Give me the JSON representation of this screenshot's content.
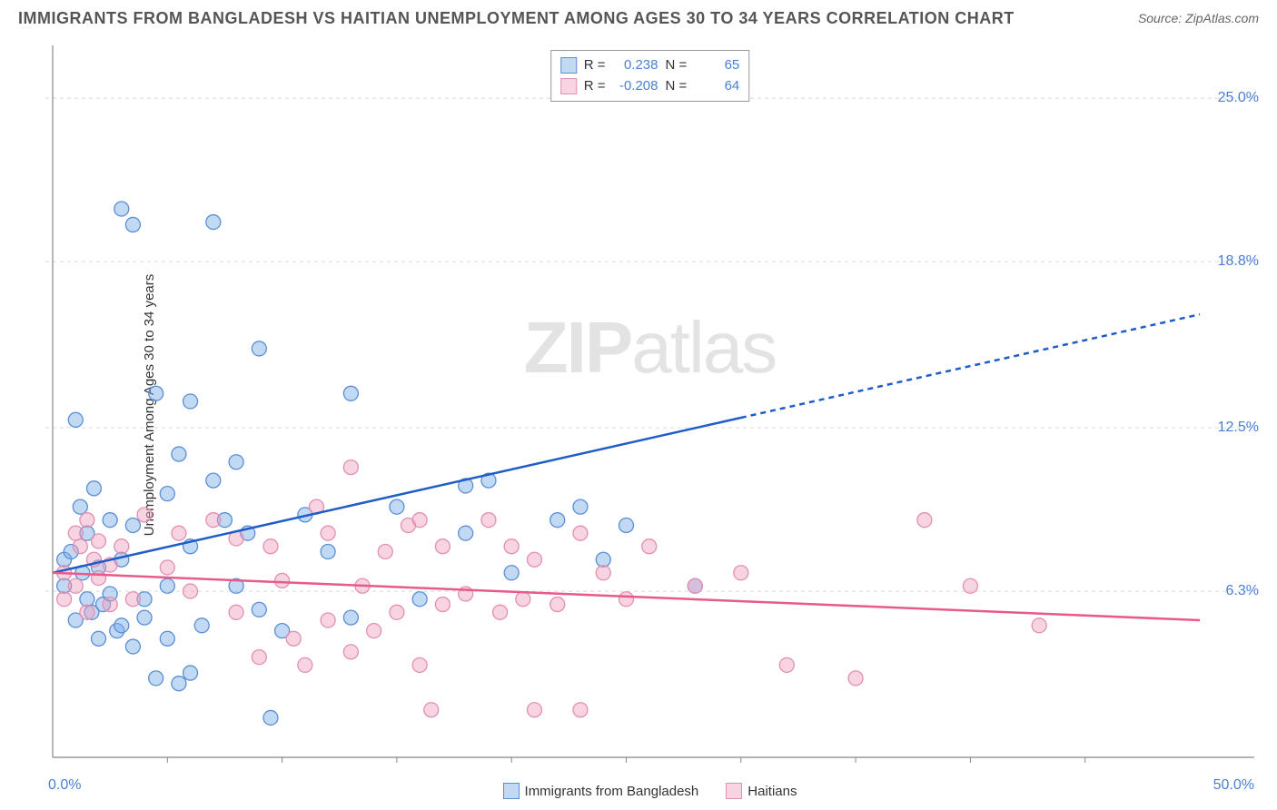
{
  "title": "IMMIGRANTS FROM BANGLADESH VS HAITIAN UNEMPLOYMENT AMONG AGES 30 TO 34 YEARS CORRELATION CHART",
  "source": "Source: ZipAtlas.com",
  "watermark_bold": "ZIP",
  "watermark_light": "atlas",
  "y_axis_label": "Unemployment Among Ages 30 to 34 years",
  "chart": {
    "type": "scatter",
    "background_color": "#ffffff",
    "grid_color": "#d8d8d8",
    "grid_dash": "4,4",
    "axis_color": "#888888",
    "xlim": [
      0,
      50
    ],
    "ylim": [
      0,
      27
    ],
    "x_ticks": [
      {
        "pos": 0,
        "label": "0.0%"
      },
      {
        "pos": 50,
        "label": "50.0%"
      }
    ],
    "y_ticks": [
      {
        "pos": 6.3,
        "label": "6.3%"
      },
      {
        "pos": 12.5,
        "label": "12.5%"
      },
      {
        "pos": 18.8,
        "label": "18.8%"
      },
      {
        "pos": 25.0,
        "label": "25.0%"
      }
    ],
    "y_gridlines": [
      6.3,
      12.5,
      18.8,
      25.0
    ],
    "x_minor_ticks": [
      5,
      10,
      15,
      20,
      25,
      30,
      35,
      40,
      45
    ],
    "series": [
      {
        "name": "Immigrants from Bangladesh",
        "color_fill": "rgba(120,170,230,0.45)",
        "color_stroke": "#5a8fd6",
        "marker_radius": 8,
        "correlation": {
          "R": "0.238",
          "N": "65"
        },
        "trend": {
          "color": "#1e5cc8",
          "width": 2.5,
          "start": {
            "x": 0,
            "y": 7.0
          },
          "end": {
            "x": 50,
            "y": 16.8
          },
          "solid_until_x": 30
        },
        "points": [
          {
            "x": 0.5,
            "y": 7.5
          },
          {
            "x": 0.5,
            "y": 6.5
          },
          {
            "x": 0.8,
            "y": 7.8
          },
          {
            "x": 1,
            "y": 12.8
          },
          {
            "x": 1,
            "y": 5.2
          },
          {
            "x": 1.2,
            "y": 9.5
          },
          {
            "x": 1.3,
            "y": 7.0
          },
          {
            "x": 1.5,
            "y": 8.5
          },
          {
            "x": 1.5,
            "y": 6.0
          },
          {
            "x": 1.7,
            "y": 5.5
          },
          {
            "x": 1.8,
            "y": 10.2
          },
          {
            "x": 2,
            "y": 7.2
          },
          {
            "x": 2,
            "y": 4.5
          },
          {
            "x": 2.2,
            "y": 5.8
          },
          {
            "x": 2.5,
            "y": 9.0
          },
          {
            "x": 2.5,
            "y": 6.2
          },
          {
            "x": 2.8,
            "y": 4.8
          },
          {
            "x": 3,
            "y": 7.5
          },
          {
            "x": 3,
            "y": 5.0
          },
          {
            "x": 3,
            "y": 20.8
          },
          {
            "x": 3.5,
            "y": 4.2
          },
          {
            "x": 3.5,
            "y": 8.8
          },
          {
            "x": 3.5,
            "y": 20.2
          },
          {
            "x": 4,
            "y": 6.0
          },
          {
            "x": 4,
            "y": 5.3
          },
          {
            "x": 4.5,
            "y": 3.0
          },
          {
            "x": 4.5,
            "y": 13.8
          },
          {
            "x": 5,
            "y": 10.0
          },
          {
            "x": 5,
            "y": 6.5
          },
          {
            "x": 5,
            "y": 4.5
          },
          {
            "x": 5.5,
            "y": 11.5
          },
          {
            "x": 5.5,
            "y": 2.8
          },
          {
            "x": 6,
            "y": 13.5
          },
          {
            "x": 6,
            "y": 8.0
          },
          {
            "x": 6,
            "y": 3.2
          },
          {
            "x": 6.5,
            "y": 5.0
          },
          {
            "x": 7,
            "y": 10.5
          },
          {
            "x": 7,
            "y": 20.3
          },
          {
            "x": 7.5,
            "y": 9.0
          },
          {
            "x": 8,
            "y": 6.5
          },
          {
            "x": 8,
            "y": 11.2
          },
          {
            "x": 8.5,
            "y": 8.5
          },
          {
            "x": 9,
            "y": 15.5
          },
          {
            "x": 9,
            "y": 5.6
          },
          {
            "x": 9.5,
            "y": 1.5
          },
          {
            "x": 10,
            "y": 4.8
          },
          {
            "x": 11,
            "y": 9.2
          },
          {
            "x": 12,
            "y": 7.8
          },
          {
            "x": 13,
            "y": 5.3
          },
          {
            "x": 13,
            "y": 13.8
          },
          {
            "x": 15,
            "y": 9.5
          },
          {
            "x": 16,
            "y": 6.0
          },
          {
            "x": 18,
            "y": 10.3
          },
          {
            "x": 18,
            "y": 8.5
          },
          {
            "x": 19,
            "y": 10.5
          },
          {
            "x": 20,
            "y": 7.0
          },
          {
            "x": 22,
            "y": 9.0
          },
          {
            "x": 23,
            "y": 9.5
          },
          {
            "x": 24,
            "y": 7.5
          },
          {
            "x": 25,
            "y": 8.8
          },
          {
            "x": 28,
            "y": 6.5
          }
        ]
      },
      {
        "name": "Haitians",
        "color_fill": "rgba(240,160,190,0.45)",
        "color_stroke": "#e290b0",
        "marker_radius": 8,
        "correlation": {
          "R": "-0.208",
          "N": "64"
        },
        "trend": {
          "color": "#e85a8a",
          "width": 2.5,
          "start": {
            "x": 0,
            "y": 7.0
          },
          "end": {
            "x": 50,
            "y": 5.2
          },
          "solid_until_x": 50
        },
        "points": [
          {
            "x": 0.5,
            "y": 7.0
          },
          {
            "x": 0.5,
            "y": 6.0
          },
          {
            "x": 1,
            "y": 8.5
          },
          {
            "x": 1,
            "y": 6.5
          },
          {
            "x": 1.2,
            "y": 8.0
          },
          {
            "x": 1.5,
            "y": 9.0
          },
          {
            "x": 1.5,
            "y": 5.5
          },
          {
            "x": 1.8,
            "y": 7.5
          },
          {
            "x": 2,
            "y": 6.8
          },
          {
            "x": 2,
            "y": 8.2
          },
          {
            "x": 2.5,
            "y": 7.3
          },
          {
            "x": 2.5,
            "y": 5.8
          },
          {
            "x": 3,
            "y": 8.0
          },
          {
            "x": 3.5,
            "y": 6.0
          },
          {
            "x": 4,
            "y": 9.2
          },
          {
            "x": 5,
            "y": 7.2
          },
          {
            "x": 5.5,
            "y": 8.5
          },
          {
            "x": 6,
            "y": 6.3
          },
          {
            "x": 7,
            "y": 9.0
          },
          {
            "x": 8,
            "y": 5.5
          },
          {
            "x": 8,
            "y": 8.3
          },
          {
            "x": 9,
            "y": 3.8
          },
          {
            "x": 9.5,
            "y": 8.0
          },
          {
            "x": 10,
            "y": 6.7
          },
          {
            "x": 10.5,
            "y": 4.5
          },
          {
            "x": 11,
            "y": 3.5
          },
          {
            "x": 11.5,
            "y": 9.5
          },
          {
            "x": 12,
            "y": 5.2
          },
          {
            "x": 12,
            "y": 8.5
          },
          {
            "x": 13,
            "y": 4.0
          },
          {
            "x": 13,
            "y": 11.0
          },
          {
            "x": 13.5,
            "y": 6.5
          },
          {
            "x": 14,
            "y": 4.8
          },
          {
            "x": 14.5,
            "y": 7.8
          },
          {
            "x": 15,
            "y": 5.5
          },
          {
            "x": 15.5,
            "y": 8.8
          },
          {
            "x": 16,
            "y": 3.5
          },
          {
            "x": 16,
            "y": 9.0
          },
          {
            "x": 16.5,
            "y": 1.8
          },
          {
            "x": 17,
            "y": 5.8
          },
          {
            "x": 17,
            "y": 8.0
          },
          {
            "x": 18,
            "y": 6.2
          },
          {
            "x": 19,
            "y": 9.0
          },
          {
            "x": 19.5,
            "y": 5.5
          },
          {
            "x": 20,
            "y": 8.0
          },
          {
            "x": 20.5,
            "y": 6.0
          },
          {
            "x": 21,
            "y": 7.5
          },
          {
            "x": 21,
            "y": 1.8
          },
          {
            "x": 22,
            "y": 5.8
          },
          {
            "x": 23,
            "y": 8.5
          },
          {
            "x": 23,
            "y": 1.8
          },
          {
            "x": 24,
            "y": 7.0
          },
          {
            "x": 25,
            "y": 6.0
          },
          {
            "x": 26,
            "y": 8.0
          },
          {
            "x": 28,
            "y": 6.5
          },
          {
            "x": 30,
            "y": 7.0
          },
          {
            "x": 32,
            "y": 3.5
          },
          {
            "x": 35,
            "y": 3.0
          },
          {
            "x": 38,
            "y": 9.0
          },
          {
            "x": 40,
            "y": 6.5
          },
          {
            "x": 43,
            "y": 5.0
          }
        ]
      }
    ]
  },
  "legend_labels": {
    "R": "R =",
    "N": "N =",
    "series1": "Immigrants from Bangladesh",
    "series2": "Haitians"
  }
}
